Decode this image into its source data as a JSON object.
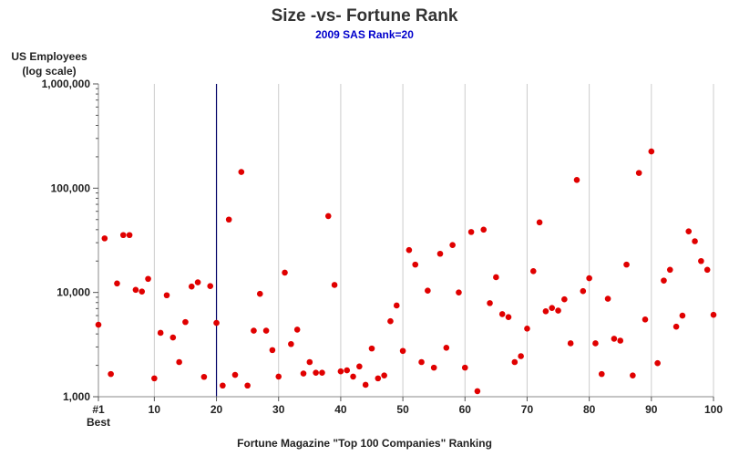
{
  "chart_data": {
    "type": "scatter",
    "title": "Size -vs- Fortune Rank",
    "subtitle": "2009 SAS Rank=20",
    "ylabel_line1": "US Employees",
    "ylabel_line2": "(log scale)",
    "xlabel": "Fortune Magazine \"Top 100 Companies\" Ranking",
    "xlim": [
      1,
      100
    ],
    "ylim": [
      1000,
      1000000
    ],
    "yscale": "log",
    "x_ticks": [
      {
        "value": 1,
        "label": "#1",
        "sublabel": "Best"
      },
      {
        "value": 10,
        "label": "10"
      },
      {
        "value": 20,
        "label": "20"
      },
      {
        "value": 30,
        "label": "30"
      },
      {
        "value": 40,
        "label": "40"
      },
      {
        "value": 50,
        "label": "50"
      },
      {
        "value": 60,
        "label": "60"
      },
      {
        "value": 70,
        "label": "70"
      },
      {
        "value": 80,
        "label": "80"
      },
      {
        "value": 90,
        "label": "90"
      },
      {
        "value": 100,
        "label": "100"
      }
    ],
    "y_ticks": [
      {
        "value": 1000,
        "label": "1,000"
      },
      {
        "value": 10000,
        "label": "10,000"
      },
      {
        "value": 100000,
        "label": "100,000"
      },
      {
        "value": 1000000,
        "label": "1,000,000"
      }
    ],
    "grid": "vertical",
    "highlight_rank": 20,
    "colors": {
      "point": "#e00000",
      "highlight": "#000066",
      "grid": "#cccccc",
      "axis": "#888888"
    },
    "points": [
      [
        1,
        4900
      ],
      [
        2,
        33000
      ],
      [
        3,
        1650
      ],
      [
        4,
        12200
      ],
      [
        5,
        35500
      ],
      [
        6,
        35500
      ],
      [
        7,
        10600
      ],
      [
        8,
        10200
      ],
      [
        9,
        13500
      ],
      [
        10,
        1500
      ],
      [
        11,
        4100
      ],
      [
        12,
        9400
      ],
      [
        13,
        3700
      ],
      [
        14,
        2150
      ],
      [
        15,
        5200
      ],
      [
        16,
        11400
      ],
      [
        17,
        12500
      ],
      [
        18,
        1550
      ],
      [
        19,
        11500
      ],
      [
        20,
        5100
      ],
      [
        21,
        1280
      ],
      [
        22,
        50000
      ],
      [
        23,
        1620
      ],
      [
        24,
        143000
      ],
      [
        25,
        1280
      ],
      [
        26,
        4300
      ],
      [
        27,
        9700
      ],
      [
        28,
        4300
      ],
      [
        29,
        2800
      ],
      [
        30,
        1560
      ],
      [
        31,
        15500
      ],
      [
        32,
        3200
      ],
      [
        33,
        4400
      ],
      [
        34,
        1670
      ],
      [
        35,
        2150
      ],
      [
        36,
        1700
      ],
      [
        37,
        1700
      ],
      [
        38,
        54000
      ],
      [
        39,
        11800
      ],
      [
        40,
        1750
      ],
      [
        41,
        1790
      ],
      [
        42,
        1560
      ],
      [
        43,
        1950
      ],
      [
        44,
        1300
      ],
      [
        45,
        2900
      ],
      [
        46,
        1500
      ],
      [
        47,
        1600
      ],
      [
        48,
        5300
      ],
      [
        49,
        7500
      ],
      [
        50,
        2750
      ],
      [
        51,
        25500
      ],
      [
        52,
        18500
      ],
      [
        53,
        2150
      ],
      [
        54,
        10400
      ],
      [
        55,
        1900
      ],
      [
        56,
        23500
      ],
      [
        57,
        2950
      ],
      [
        58,
        28500
      ],
      [
        59,
        10000
      ],
      [
        60,
        1900
      ],
      [
        61,
        38000
      ],
      [
        62,
        1130
      ],
      [
        63,
        40000
      ],
      [
        64,
        7900
      ],
      [
        65,
        14000
      ],
      [
        66,
        6200
      ],
      [
        67,
        5800
      ],
      [
        68,
        2150
      ],
      [
        69,
        2450
      ],
      [
        70,
        4500
      ],
      [
        71,
        16000
      ],
      [
        72,
        47000
      ],
      [
        73,
        6600
      ],
      [
        74,
        7100
      ],
      [
        75,
        6700
      ],
      [
        76,
        8600
      ],
      [
        77,
        3250
      ],
      [
        78,
        120000
      ],
      [
        79,
        10300
      ],
      [
        80,
        13700
      ],
      [
        81,
        3250
      ],
      [
        82,
        1650
      ],
      [
        83,
        8700
      ],
      [
        84,
        3600
      ],
      [
        85,
        3450
      ],
      [
        86,
        18500
      ],
      [
        87,
        1600
      ],
      [
        88,
        140000
      ],
      [
        89,
        5500
      ],
      [
        90,
        225000
      ],
      [
        91,
        2100
      ],
      [
        92,
        13000
      ],
      [
        93,
        16500
      ],
      [
        94,
        4700
      ],
      [
        95,
        6000
      ],
      [
        96,
        38500
      ],
      [
        97,
        31000
      ],
      [
        98,
        20000
      ],
      [
        99,
        16500
      ],
      [
        100,
        6100
      ]
    ]
  }
}
